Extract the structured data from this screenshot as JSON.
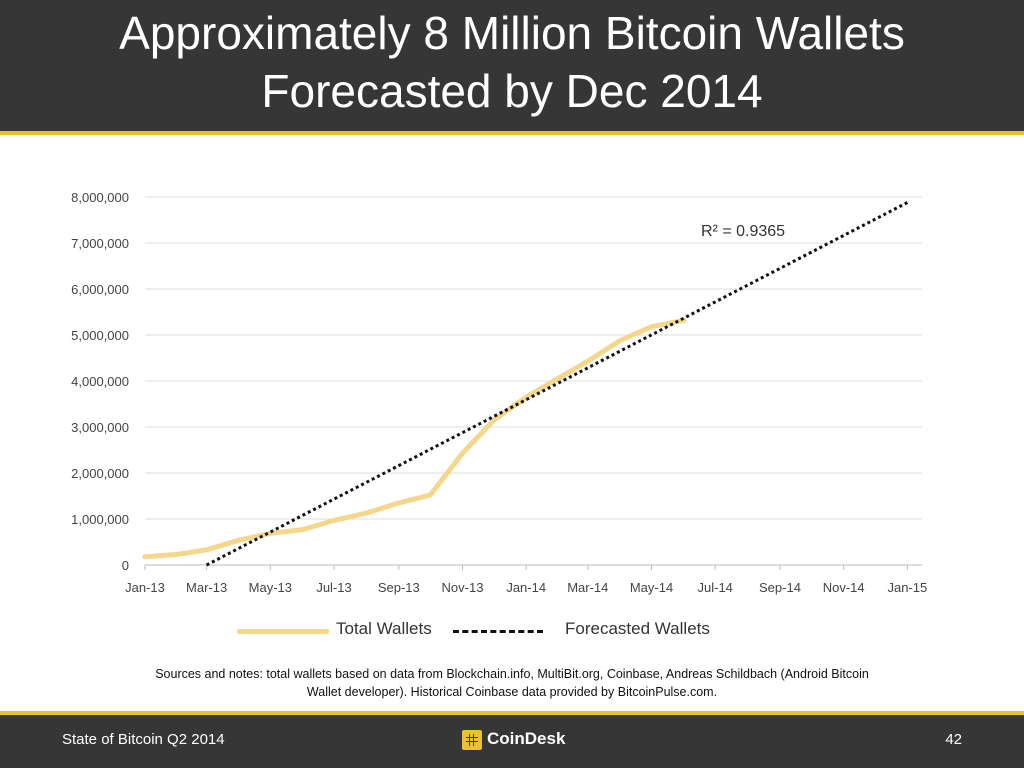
{
  "slide": {
    "title_line1": "Approximately 8 Million Bitcoin Wallets",
    "title_line2": "Forecasted by Dec 2014",
    "sources_line1": "Sources and notes: total wallets based on data from Blockchain.info, MultiBit.org, Coinbase, Andreas Schildbach (Android Bitcoin",
    "sources_line2": "Wallet developer). Historical Coinbase data provided by BitcoinPulse.com.",
    "footer_left": "State of Bitcoin Q2 2014",
    "footer_brand": "CoinDesk",
    "page_number": "42"
  },
  "colors": {
    "header_bg": "#363636",
    "accent": "#e8c233",
    "actual_line": "#f5d78c",
    "trend_line": "#111111"
  },
  "icons": {
    "brand": "coindesk-logo-icon"
  },
  "chart_data": {
    "type": "line",
    "x_tick_labels": [
      "Jan-13",
      "Mar-13",
      "May-13",
      "Jul-13",
      "Sep-13",
      "Nov-13",
      "Jan-14",
      "Mar-14",
      "May-14",
      "Jul-14",
      "Sep-14",
      "Nov-14",
      "Jan-15"
    ],
    "y_tick_labels": [
      "0",
      "1,000,000",
      "2,000,000",
      "3,000,000",
      "4,000,000",
      "5,000,000",
      "6,000,000",
      "7,000,000",
      "8,000,000"
    ],
    "ylim": [
      0,
      8000000
    ],
    "xlim": [
      "2013-01-01",
      "2015-01-15"
    ],
    "grid": true,
    "legend_position": "bottom",
    "annotation": "R² = 0.9365",
    "series": [
      {
        "name": "Total Wallets",
        "style": "solid",
        "x": [
          "2013-01-01",
          "2013-02-01",
          "2013-03-01",
          "2013-04-01",
          "2013-05-01",
          "2013-06-01",
          "2013-07-01",
          "2013-08-01",
          "2013-09-01",
          "2013-10-01",
          "2013-11-01",
          "2013-12-01",
          "2014-01-01",
          "2014-02-01",
          "2014-03-01",
          "2014-04-01",
          "2014-05-01",
          "2014-06-01"
        ],
        "y": [
          180000,
          230000,
          330000,
          540000,
          690000,
          770000,
          970000,
          1130000,
          1350000,
          1520000,
          2430000,
          3150000,
          3650000,
          4060000,
          4430000,
          4880000,
          5180000,
          5320000
        ]
      },
      {
        "name": "Forecasted Wallets",
        "style": "dotted",
        "x": [
          "2013-03-01",
          "2015-01-01"
        ],
        "y": [
          0,
          7880000
        ]
      }
    ]
  }
}
